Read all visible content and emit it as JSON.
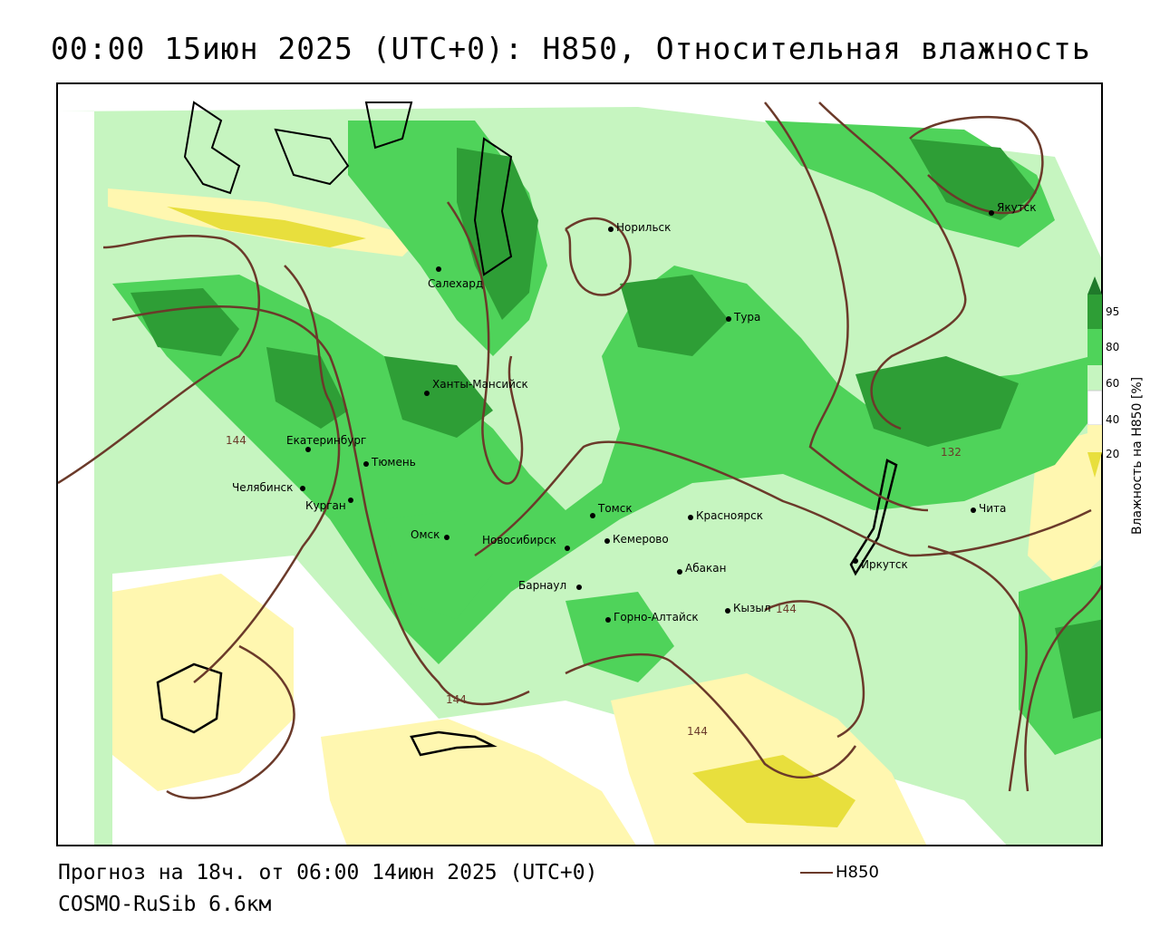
{
  "title": "00:00 15июн 2025 (UTC+0): H850, Относительная влажность",
  "forecast_line": "Прогноз на 18ч. от 06:00 14июн 2025 (UTC+0)",
  "model_line": "COSMO-RuSib 6.6км",
  "legend": {
    "line_label": "H850",
    "line_color": "#6b3a2a"
  },
  "colorbar": {
    "title": "Влажность на H850 [%]",
    "ticks": [
      "95",
      "80",
      "60",
      "40",
      "20"
    ],
    "colors": [
      "#1f7a2a",
      "#2e9e36",
      "#4fd35a",
      "#c6f5c0",
      "#ffffff",
      "#fff7b0",
      "#e8df3d"
    ]
  },
  "contour_labels": [
    "144",
    "132",
    "144",
    "144",
    "144"
  ],
  "cities": [
    {
      "name": "Якутск"
    },
    {
      "name": "Норильск"
    },
    {
      "name": "Салехард"
    },
    {
      "name": "Тура"
    },
    {
      "name": "Ханты-Мансийск"
    },
    {
      "name": "Екатеринбург"
    },
    {
      "name": "Тюмень"
    },
    {
      "name": "Челябинск"
    },
    {
      "name": "Курган"
    },
    {
      "name": "Омск"
    },
    {
      "name": "Томск"
    },
    {
      "name": "Красноярск"
    },
    {
      "name": "Новосибирск"
    },
    {
      "name": "Кемерово"
    },
    {
      "name": "Абакан"
    },
    {
      "name": "Барнаул"
    },
    {
      "name": "Иркутск"
    },
    {
      "name": "Чита"
    },
    {
      "name": "Кызыл"
    },
    {
      "name": "Горно-Алтайск"
    }
  ]
}
